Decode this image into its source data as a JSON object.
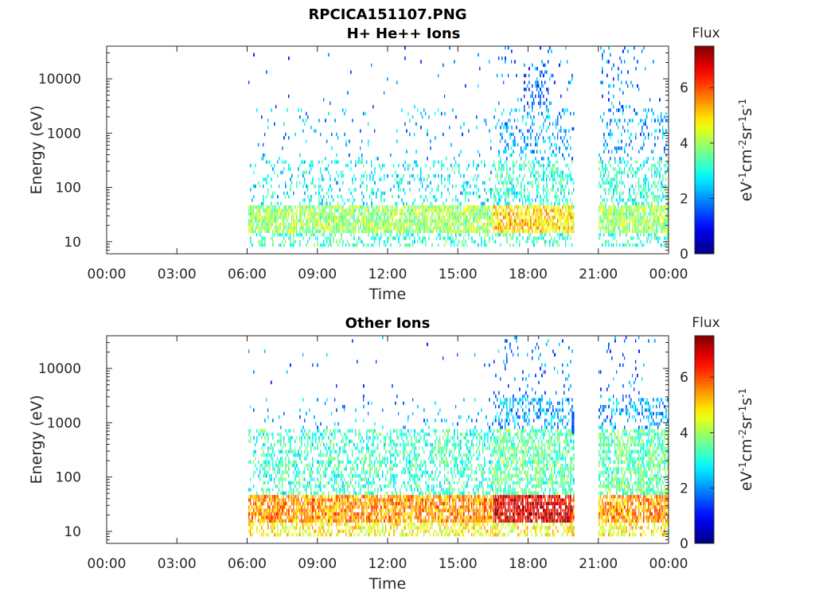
{
  "figure": {
    "title_line1": "RPCICA151107.PNG"
  },
  "colors": {
    "axis": "#262626",
    "background": "#ffffff",
    "colormap": "jet"
  },
  "chart_data": [
    {
      "type": "heatmap",
      "title": "H+ He++ Ions",
      "xlabel": "Time",
      "ylabel": "Energy (eV)",
      "x_tick_labels": [
        "00:00",
        "03:00",
        "06:00",
        "09:00",
        "12:00",
        "15:00",
        "18:00",
        "21:00",
        "00:00"
      ],
      "x_ticks_hours": [
        0,
        3,
        6,
        9,
        12,
        15,
        18,
        21,
        24
      ],
      "xlim_hours": [
        0,
        24
      ],
      "y_scale": "log",
      "ylim": [
        6,
        40000
      ],
      "y_tick_labels": [
        "10",
        "100",
        "1000",
        "10000"
      ],
      "y_ticks": [
        10,
        100,
        1000,
        10000
      ],
      "colorbar": {
        "label": "Flux",
        "unit_label": "eV-1cm-2sr-1s-1",
        "range": [
          0,
          7.5
        ],
        "tick_labels": [
          "0",
          "2",
          "4",
          "6"
        ],
        "ticks": [
          0,
          2,
          4,
          6
        ]
      },
      "data_coverage_hours": [
        [
          6.0,
          19.95
        ],
        [
          21.0,
          24.0
        ]
      ],
      "approx_band": {
        "energy_range_eV": [
          15,
          45
        ],
        "typical_flux": 4.0,
        "peak_flux_near_18h": 5.0
      },
      "marker": {
        "time_hours": 19.9,
        "energy_eV": 1200,
        "flux": 1.5
      },
      "grid": false
    },
    {
      "type": "heatmap",
      "title": "Other Ions",
      "xlabel": "Time",
      "ylabel": "Energy (eV)",
      "x_tick_labels": [
        "00:00",
        "03:00",
        "06:00",
        "09:00",
        "12:00",
        "15:00",
        "18:00",
        "21:00",
        "00:00"
      ],
      "x_ticks_hours": [
        0,
        3,
        6,
        9,
        12,
        15,
        18,
        21,
        24
      ],
      "xlim_hours": [
        0,
        24
      ],
      "y_scale": "log",
      "ylim": [
        6,
        40000
      ],
      "y_tick_labels": [
        "10",
        "100",
        "1000",
        "10000"
      ],
      "y_ticks": [
        10,
        100,
        1000,
        10000
      ],
      "colorbar": {
        "label": "Flux",
        "unit_label": "eV-1cm-2sr-1s-1",
        "range": [
          0,
          7.5
        ],
        "tick_labels": [
          "0",
          "2",
          "4",
          "6"
        ],
        "ticks": [
          0,
          2,
          4,
          6
        ]
      },
      "data_coverage_hours": [
        [
          6.0,
          19.95
        ],
        [
          21.0,
          24.0
        ]
      ],
      "approx_band": {
        "energy_range_eV": [
          15,
          45
        ],
        "typical_flux": 5.5,
        "peak_flux_near_18h": 6.8
      },
      "marker": {
        "time_hours": 19.9,
        "energy_eV": 1000,
        "flux": 1.5
      },
      "grid": false
    }
  ]
}
